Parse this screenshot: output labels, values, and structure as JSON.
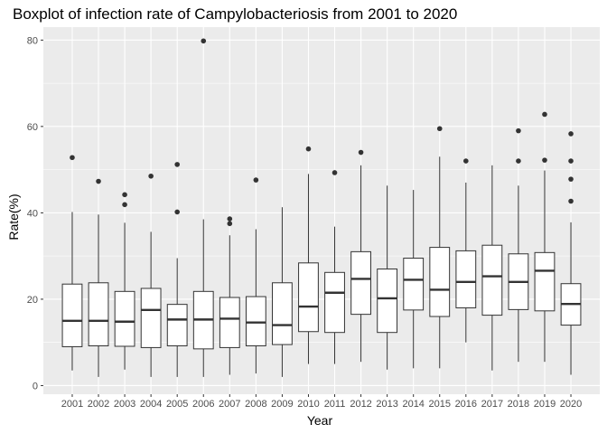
{
  "chart_data": {
    "type": "boxplot",
    "title": "Boxplot of infection rate of Campylobacteriosis from 2001 to 2020",
    "xlabel": "Year",
    "ylabel": "Rate(%)",
    "ylim": [
      -2,
      83
    ],
    "yticks": [
      0,
      20,
      40,
      60,
      80
    ],
    "grid": true,
    "legend": "none",
    "colors": {
      "panel": "#EBEBEB",
      "grid": "#FFFFFF",
      "box_fill": "#FFFFFF",
      "stroke": "#333333",
      "outlier": "#333333"
    },
    "categories": [
      "2001",
      "2002",
      "2003",
      "2004",
      "2005",
      "2006",
      "2007",
      "2008",
      "2009",
      "2010",
      "2011",
      "2012",
      "2013",
      "2014",
      "2015",
      "2016",
      "2017",
      "2018",
      "2019",
      "2020"
    ],
    "boxes": [
      {
        "min": 3.5,
        "q1": 9.0,
        "median": 15.0,
        "q3": 23.5,
        "max": 40.2,
        "outliers": [
          52.8
        ]
      },
      {
        "min": 2.0,
        "q1": 9.2,
        "median": 15.0,
        "q3": 23.8,
        "max": 39.6,
        "outliers": [
          47.3
        ]
      },
      {
        "min": 3.7,
        "q1": 9.1,
        "median": 14.8,
        "q3": 21.8,
        "max": 37.7,
        "outliers": [
          44.2,
          41.9
        ]
      },
      {
        "min": 2.0,
        "q1": 8.8,
        "median": 17.5,
        "q3": 22.5,
        "max": 35.6,
        "outliers": [
          48.5
        ]
      },
      {
        "min": 2.0,
        "q1": 9.2,
        "median": 15.3,
        "q3": 18.8,
        "max": 29.5,
        "outliers": [
          51.2,
          40.2
        ]
      },
      {
        "min": 2.0,
        "q1": 8.5,
        "median": 15.3,
        "q3": 21.8,
        "max": 38.5,
        "outliers": [
          79.8
        ]
      },
      {
        "min": 2.5,
        "q1": 8.8,
        "median": 15.5,
        "q3": 20.4,
        "max": 34.8,
        "outliers": [
          38.6,
          37.5
        ]
      },
      {
        "min": 2.8,
        "q1": 9.2,
        "median": 14.6,
        "q3": 20.6,
        "max": 36.2,
        "outliers": [
          47.6
        ]
      },
      {
        "min": 2.0,
        "q1": 9.5,
        "median": 14.0,
        "q3": 23.8,
        "max": 41.3,
        "outliers": []
      },
      {
        "min": 5.0,
        "q1": 12.5,
        "median": 18.3,
        "q3": 28.4,
        "max": 49.0,
        "outliers": [
          54.8
        ]
      },
      {
        "min": 5.0,
        "q1": 12.3,
        "median": 21.5,
        "q3": 26.2,
        "max": 36.8,
        "outliers": [
          49.3
        ]
      },
      {
        "min": 5.5,
        "q1": 16.5,
        "median": 24.7,
        "q3": 31.0,
        "max": 51.0,
        "outliers": [
          54.0
        ]
      },
      {
        "min": 3.7,
        "q1": 12.3,
        "median": 20.2,
        "q3": 27.0,
        "max": 46.3,
        "outliers": []
      },
      {
        "min": 4.0,
        "q1": 17.5,
        "median": 24.5,
        "q3": 29.5,
        "max": 45.3,
        "outliers": []
      },
      {
        "min": 4.0,
        "q1": 16.0,
        "median": 22.2,
        "q3": 32.0,
        "max": 53.0,
        "outliers": [
          59.5
        ]
      },
      {
        "min": 10.0,
        "q1": 18.0,
        "median": 24.0,
        "q3": 31.2,
        "max": 47.0,
        "outliers": [
          52.0
        ]
      },
      {
        "min": 3.5,
        "q1": 16.3,
        "median": 25.3,
        "q3": 32.5,
        "max": 51.0,
        "outliers": []
      },
      {
        "min": 5.5,
        "q1": 17.6,
        "median": 24.0,
        "q3": 30.5,
        "max": 46.3,
        "outliers": [
          59.0,
          52.0
        ]
      },
      {
        "min": 5.5,
        "q1": 17.3,
        "median": 26.6,
        "q3": 30.8,
        "max": 49.8,
        "outliers": [
          62.8,
          52.2
        ]
      },
      {
        "min": 2.5,
        "q1": 14.0,
        "median": 18.9,
        "q3": 23.6,
        "max": 37.8,
        "outliers": [
          58.3,
          52.0,
          47.8,
          42.7
        ]
      }
    ]
  }
}
